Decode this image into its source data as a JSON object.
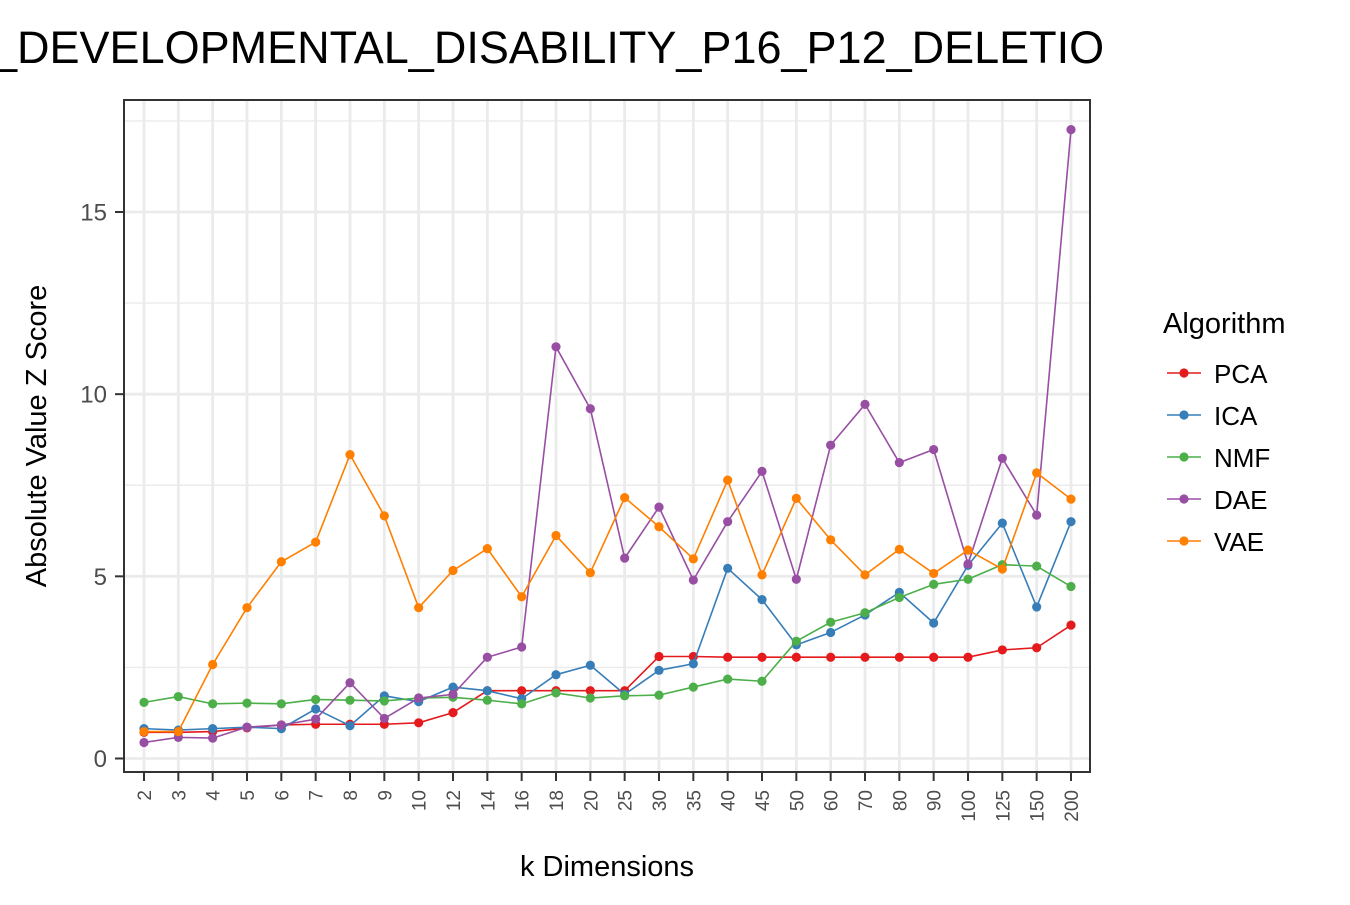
{
  "chart_data": {
    "type": "line",
    "title": "_DEVELOPMENTAL_DISABILITY_P16_P12_DELETIO",
    "xlabel": "k Dimensions",
    "ylabel": "Absolute Value Z Score",
    "categories": [
      "2",
      "3",
      "4",
      "5",
      "6",
      "7",
      "8",
      "9",
      "10",
      "12",
      "14",
      "16",
      "18",
      "20",
      "25",
      "30",
      "35",
      "40",
      "45",
      "50",
      "60",
      "70",
      "80",
      "90",
      "100",
      "125",
      "150",
      "200"
    ],
    "y_ticks": [
      0,
      5,
      10,
      15
    ],
    "ylim": [
      -0.4,
      18
    ],
    "grid": true,
    "legend_title": "Algorithm",
    "legend_position": "right",
    "series": [
      {
        "name": "PCA",
        "color": "#e41a1c",
        "values": [
          0.72,
          0.72,
          0.74,
          0.84,
          0.92,
          0.94,
          0.94,
          0.94,
          0.98,
          1.26,
          1.86,
          1.86,
          1.86,
          1.86,
          1.86,
          2.8,
          2.8,
          2.78,
          2.78,
          2.78,
          2.78,
          2.78,
          2.78,
          2.78,
          2.78,
          2.98,
          3.04,
          3.66
        ]
      },
      {
        "name": "ICA",
        "color": "#377eb8",
        "values": [
          0.82,
          0.78,
          0.82,
          0.86,
          0.82,
          1.36,
          0.9,
          1.72,
          1.56,
          1.96,
          1.86,
          1.64,
          2.3,
          2.56,
          1.76,
          2.42,
          2.6,
          5.22,
          4.36,
          3.12,
          3.46,
          3.94,
          4.56,
          3.72,
          5.3,
          6.46,
          4.16,
          6.5
        ]
      },
      {
        "name": "NMF",
        "color": "#4daf4a",
        "values": [
          1.54,
          1.7,
          1.5,
          1.52,
          1.5,
          1.62,
          1.6,
          1.58,
          1.66,
          1.68,
          1.6,
          1.5,
          1.8,
          1.66,
          1.72,
          1.74,
          1.96,
          2.18,
          2.12,
          3.22,
          3.74,
          4.0,
          4.42,
          4.78,
          4.92,
          5.32,
          5.28,
          4.72
        ]
      },
      {
        "name": "DAE",
        "color": "#984ea3",
        "values": [
          0.44,
          0.58,
          0.56,
          0.86,
          0.92,
          1.08,
          2.08,
          1.1,
          1.66,
          1.76,
          2.78,
          3.06,
          11.3,
          9.6,
          5.5,
          6.9,
          4.9,
          6.5,
          7.88,
          4.92,
          8.6,
          9.72,
          8.12,
          8.48,
          5.34,
          8.24,
          6.68,
          17.26
        ]
      },
      {
        "name": "VAE",
        "color": "#ff7f00",
        "values": [
          0.74,
          0.74,
          2.58,
          4.14,
          5.4,
          5.94,
          8.34,
          6.66,
          4.14,
          5.16,
          5.76,
          4.44,
          6.12,
          5.1,
          7.16,
          6.36,
          5.48,
          7.64,
          5.04,
          7.14,
          6.0,
          5.04,
          5.74,
          5.08,
          5.72,
          5.2,
          7.84,
          7.12
        ]
      }
    ]
  }
}
